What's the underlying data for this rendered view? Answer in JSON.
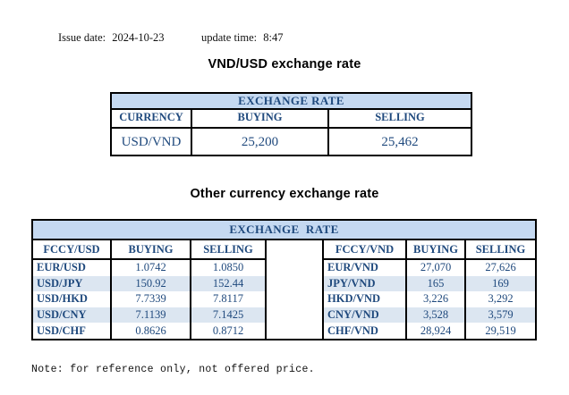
{
  "meta": {
    "issue_date_label": "Issue date:",
    "issue_date": "2024-10-23",
    "update_time_label": "update time:",
    "update_time": "8:47"
  },
  "titles": {
    "usd_table": "VND/USD exchange rate",
    "other_table": "Other currency exchange rate"
  },
  "usd_table": {
    "header": "EXCHANGE RATE",
    "columns": [
      "CURRENCY",
      "BUYING",
      "SELLING"
    ],
    "rows": [
      [
        "USD/VND",
        "25,200",
        "25,462"
      ]
    ]
  },
  "other_table": {
    "header": "EXCHANGE  RATE",
    "left": {
      "columns": [
        "FCCY/USD",
        "BUYING",
        "SELLING"
      ],
      "rows": [
        [
          "EUR/USD",
          "1.0742",
          "1.0850"
        ],
        [
          "USD/JPY",
          "150.92",
          "152.44"
        ],
        [
          "USD/HKD",
          "7.7339",
          "7.8117"
        ],
        [
          "USD/CNY",
          "7.1139",
          "7.1425"
        ],
        [
          "USD/CHF",
          "0.8626",
          "0.8712"
        ]
      ]
    },
    "right": {
      "columns": [
        "FCCY/VND",
        "BUYING",
        "SELLING"
      ],
      "rows": [
        [
          "EUR/VND",
          "27,070",
          "27,626"
        ],
        [
          "JPY/VND",
          "165",
          "169"
        ],
        [
          "HKD/VND",
          "3,226",
          "3,292"
        ],
        [
          "CNY/VND",
          "3,528",
          "3,579"
        ],
        [
          "CHF/VND",
          "28,924",
          "29,519"
        ]
      ]
    }
  },
  "note": "Note: for reference only, not offered price.",
  "colors": {
    "band_bg": "#c5d9f1",
    "stripe_bg": "#dce6f1",
    "table_text": "#1f497d",
    "border": "#000000"
  }
}
